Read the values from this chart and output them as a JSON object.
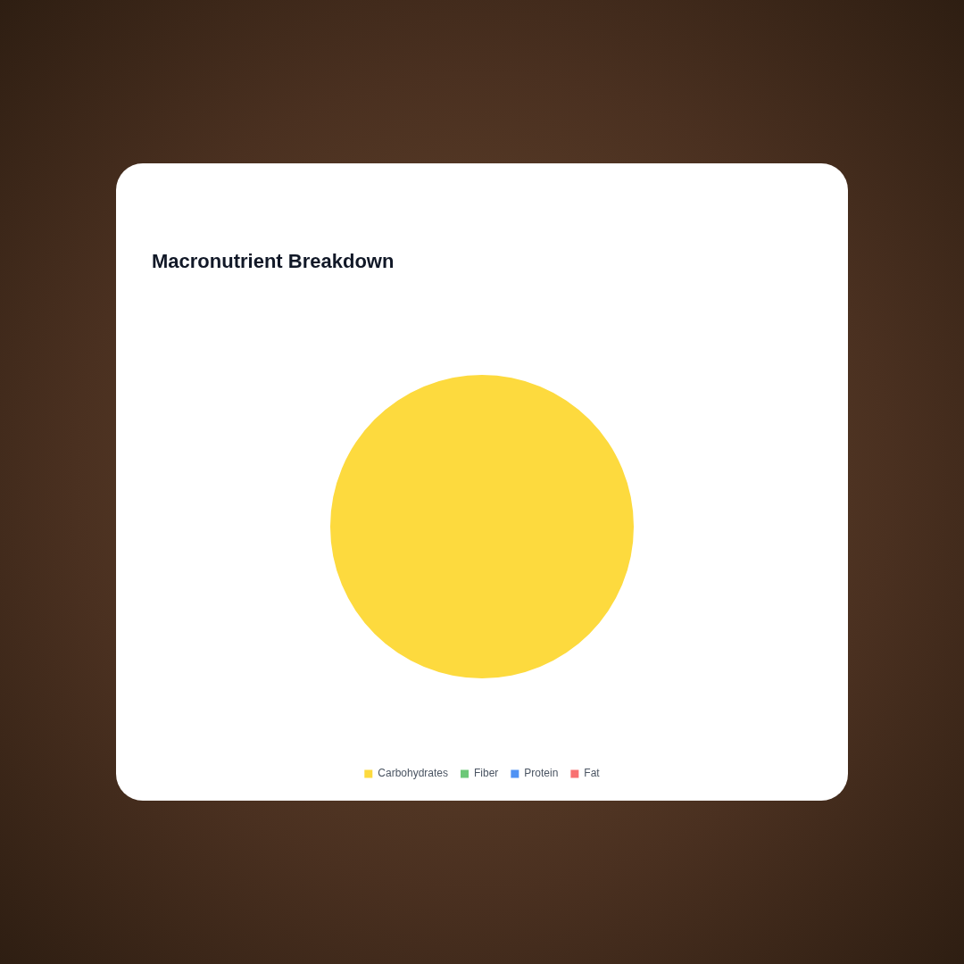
{
  "chart_data": {
    "type": "pie",
    "title": "Macronutrient Breakdown",
    "categories": [
      "Carbohydrates",
      "Fiber",
      "Protein",
      "Fat"
    ],
    "values": [
      100,
      0,
      0,
      0
    ],
    "colors": [
      "#fdda3e",
      "#6cc878",
      "#4e92f4",
      "#f87171"
    ],
    "legend": "bottom"
  }
}
